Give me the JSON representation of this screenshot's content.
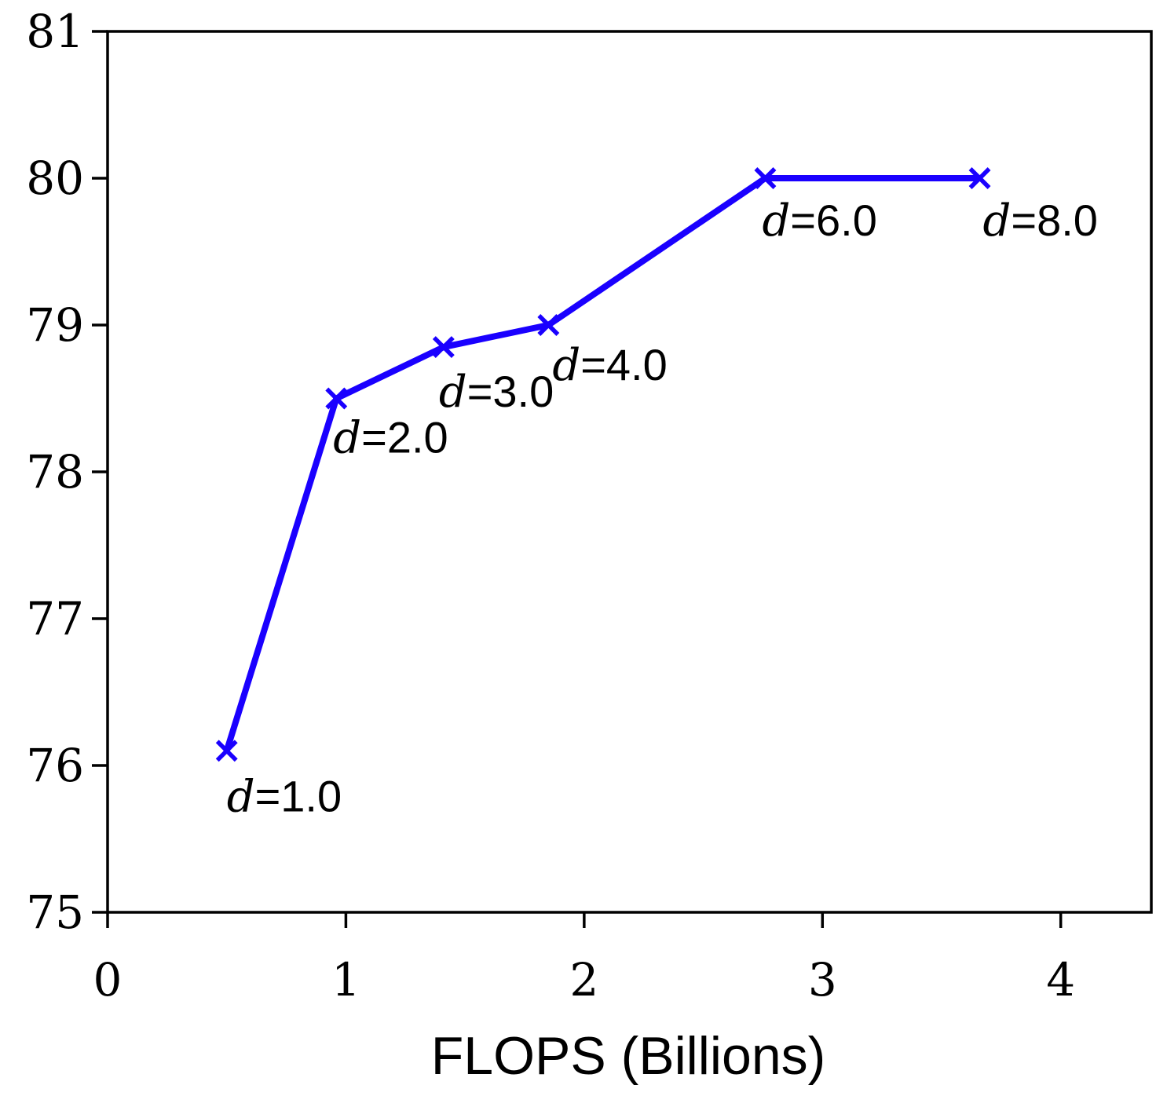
{
  "chart_data": {
    "type": "line",
    "title": "",
    "xlabel": "FLOPS (Billions)",
    "ylabel": "",
    "xlim": [
      0,
      4.38
    ],
    "ylim": [
      75,
      81
    ],
    "xticks": [
      "0",
      "1",
      "2",
      "3",
      "4"
    ],
    "yticks": [
      "75",
      "76",
      "77",
      "78",
      "79",
      "80",
      "81"
    ],
    "grid": false,
    "legend": "none",
    "series": [
      {
        "color": "#1a00ff",
        "marker": "x",
        "points": [
          {
            "x": 0.5,
            "y": 76.1,
            "label_symbol": "d",
            "label_value": "=1.0"
          },
          {
            "x": 0.96,
            "y": 78.5,
            "label_symbol": "d",
            "label_value": "=2.0"
          },
          {
            "x": 1.41,
            "y": 78.85,
            "label_symbol": "d",
            "label_value": "=3.0"
          },
          {
            "x": 1.85,
            "y": 79.0,
            "label_symbol": "d",
            "label_value": "=4.0"
          },
          {
            "x": 2.76,
            "y": 80.0,
            "label_symbol": "d",
            "label_value": "=6.0"
          },
          {
            "x": 3.66,
            "y": 80.0,
            "label_symbol": "d",
            "label_value": "=8.0"
          }
        ]
      }
    ]
  }
}
